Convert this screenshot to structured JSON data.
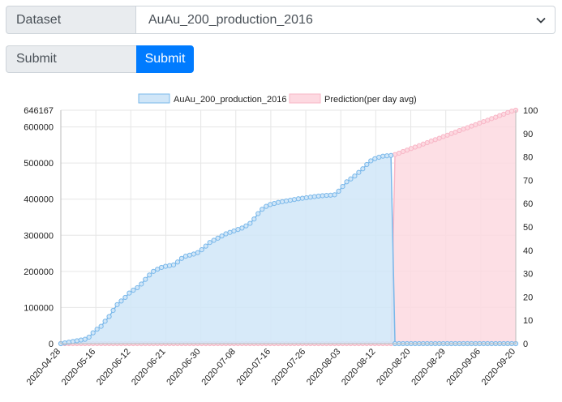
{
  "form": {
    "dataset_label": "Dataset",
    "dataset_value": "AuAu_200_production_2016",
    "submit_label": "Submit",
    "submit_button": "Submit"
  },
  "colors": {
    "series_fill": "#d0e6f8",
    "series_line": "#7ab8ea",
    "prediction_fill": "#fdd9e1",
    "prediction_line": "#f8b6c6",
    "button": "#007bff"
  },
  "chart_data": {
    "type": "area",
    "legend": [
      "AuAu_200_production_2016",
      "Prediction(per day avg)"
    ],
    "legend_position": "top",
    "x_tick_labels": [
      "2020-04-28",
      "2020-05-16",
      "2020-06-12",
      "2020-06-21",
      "2020-06-30",
      "2020-07-08",
      "2020-07-16",
      "2020-07-26",
      "2020-08-03",
      "2020-08-12",
      "2020-08-20",
      "2020-08-29",
      "2020-09-06",
      "2020-09-20"
    ],
    "y_left": {
      "ticks": [
        0,
        100000,
        200000,
        300000,
        400000,
        500000,
        600000
      ],
      "max": 646167,
      "max_label": "646167"
    },
    "y_right": {
      "ticks": [
        0,
        10,
        20,
        30,
        40,
        50,
        60,
        70,
        80,
        90,
        100
      ]
    },
    "series": [
      {
        "name": "AuAu_200_production_2016",
        "axis": "left",
        "values": [
          0,
          2000,
          4000,
          6000,
          8000,
          10000,
          12000,
          18000,
          30000,
          40000,
          48000,
          62000,
          75000,
          92000,
          108000,
          118000,
          128000,
          140000,
          148000,
          155000,
          165000,
          178000,
          190000,
          200000,
          206000,
          211000,
          214000,
          216000,
          218000,
          226000,
          236000,
          242000,
          245000,
          248000,
          252000,
          260000,
          270000,
          280000,
          286000,
          292000,
          298000,
          304000,
          308000,
          312000,
          316000,
          320000,
          326000,
          333000,
          345000,
          360000,
          372000,
          380000,
          385000,
          388000,
          391000,
          393000,
          395000,
          397000,
          399000,
          401000,
          402500,
          404000,
          405500,
          407000,
          408500,
          409500,
          410500,
          411000,
          412000,
          422000,
          435000,
          448000,
          456000,
          464000,
          474000,
          484000,
          496000,
          506000,
          512000,
          516000,
          519000,
          520000,
          521000,
          0,
          0,
          0,
          0,
          0,
          0,
          0,
          0,
          0,
          0,
          0,
          0,
          0,
          0,
          0,
          0,
          0,
          0,
          0,
          0,
          0,
          0,
          0,
          0,
          0,
          0,
          0,
          0,
          0,
          0,
          0
        ]
      },
      {
        "name": "Prediction(per day avg)",
        "axis": "right",
        "values": [
          0,
          0,
          0,
          0,
          0,
          0,
          0,
          0,
          0,
          0,
          0,
          0,
          0,
          0,
          0,
          0,
          0,
          0,
          0,
          0,
          0,
          0,
          0,
          0,
          0,
          0,
          0,
          0,
          0,
          0,
          0,
          0,
          0,
          0,
          0,
          0,
          0,
          0,
          0,
          0,
          0,
          0,
          0,
          0,
          0,
          0,
          0,
          0,
          0,
          0,
          0,
          0,
          0,
          0,
          0,
          0,
          0,
          0,
          0,
          0,
          0,
          0,
          0,
          0,
          0,
          0,
          0,
          0,
          0,
          0,
          0,
          0,
          0,
          0,
          0,
          0,
          0,
          0,
          0,
          0,
          0,
          0,
          0,
          81,
          81.6,
          82.3,
          82.9,
          83.6,
          84.2,
          84.8,
          85.5,
          86.1,
          86.8,
          87.4,
          88,
          88.7,
          89.3,
          90,
          90.6,
          91.3,
          91.9,
          92.5,
          93.2,
          93.8,
          94.5,
          95.1,
          95.7,
          96.4,
          97,
          97.7,
          98.3,
          99,
          99.6,
          100
        ]
      }
    ],
    "grid": true
  }
}
